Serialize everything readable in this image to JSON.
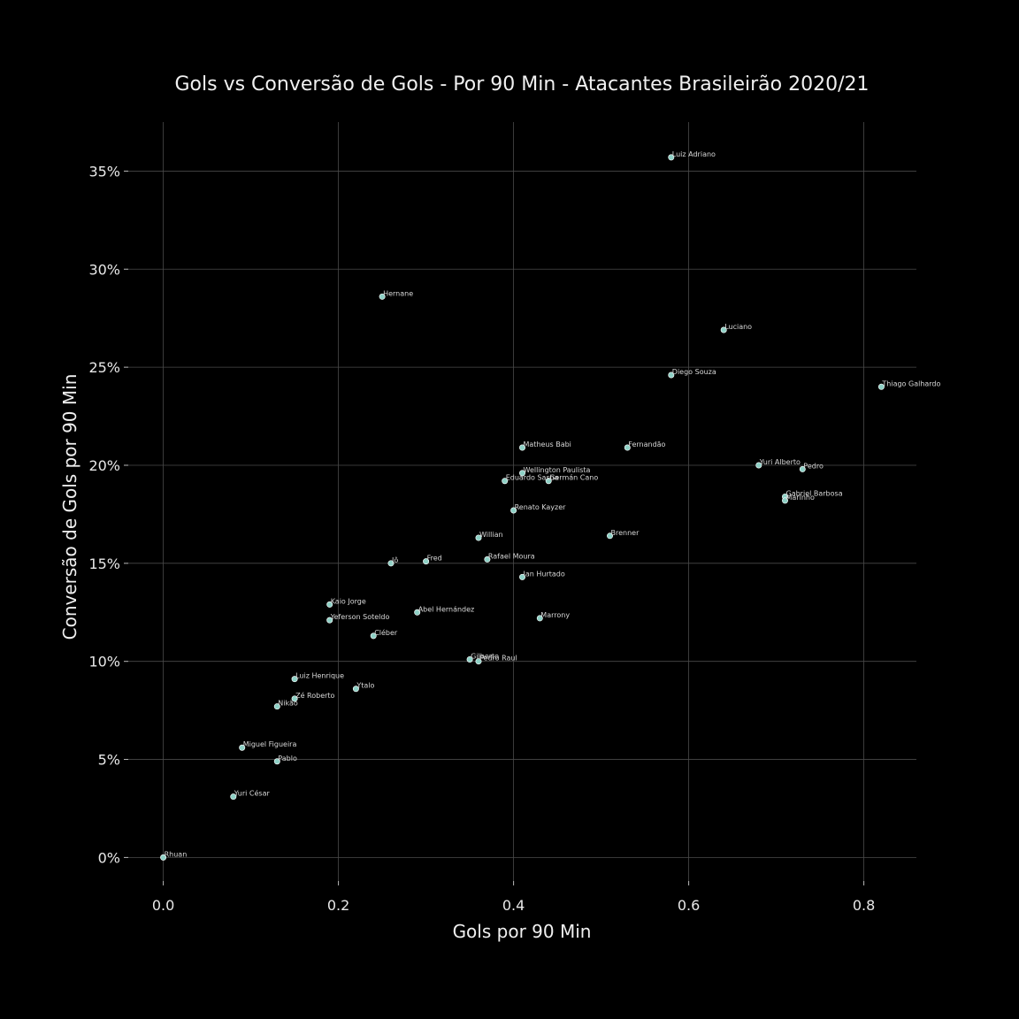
{
  "chart_data": {
    "type": "scatter",
    "title": "Gols vs Conversão de Gols - Por 90 Min - Atacantes Brasileirão 2020/21",
    "xlabel": "Gols por 90 Min",
    "ylabel": "Conversão de Gols por 90 Min",
    "xlim": [
      -0.04,
      0.86
    ],
    "ylim": [
      -0.012,
      0.375
    ],
    "xticks": [
      0.0,
      0.2,
      0.4,
      0.6,
      0.8
    ],
    "xtick_labels": [
      "0.0",
      "0.2",
      "0.4",
      "0.6",
      "0.8"
    ],
    "yticks": [
      0.0,
      0.05,
      0.1,
      0.15,
      0.2,
      0.25,
      0.3,
      0.35
    ],
    "ytick_labels": [
      "0%",
      "5%",
      "10%",
      "15%",
      "20%",
      "25%",
      "30%",
      "35%"
    ],
    "grid": true,
    "marker_color": "#8ed1c6",
    "background_color": "#000000",
    "points": [
      {
        "label": "Luiz Adriano",
        "x": 0.58,
        "y": 0.357
      },
      {
        "label": "Hernane",
        "x": 0.25,
        "y": 0.286
      },
      {
        "label": "Luciano",
        "x": 0.64,
        "y": 0.269
      },
      {
        "label": "Diego Souza",
        "x": 0.58,
        "y": 0.246
      },
      {
        "label": "Thiago Galhardo",
        "x": 0.82,
        "y": 0.24
      },
      {
        "label": "Matheus Babi",
        "x": 0.41,
        "y": 0.209
      },
      {
        "label": "Fernandão",
        "x": 0.53,
        "y": 0.209
      },
      {
        "label": "Yuri Alberto",
        "x": 0.68,
        "y": 0.2
      },
      {
        "label": "Pedro",
        "x": 0.73,
        "y": 0.198
      },
      {
        "label": "Wellington Paulista",
        "x": 0.41,
        "y": 0.196
      },
      {
        "label": "Eduardo Sasha",
        "x": 0.39,
        "y": 0.192
      },
      {
        "label": "Germán Cano",
        "x": 0.44,
        "y": 0.192
      },
      {
        "label": "Gabriel Barbosa",
        "x": 0.71,
        "y": 0.184
      },
      {
        "label": "Marinho",
        "x": 0.71,
        "y": 0.182
      },
      {
        "label": "Renato Kayzer",
        "x": 0.4,
        "y": 0.177
      },
      {
        "label": "Willian",
        "x": 0.36,
        "y": 0.163
      },
      {
        "label": "Brenner",
        "x": 0.51,
        "y": 0.164
      },
      {
        "label": "Jô",
        "x": 0.26,
        "y": 0.15
      },
      {
        "label": "Fred",
        "x": 0.3,
        "y": 0.151
      },
      {
        "label": "Rafael Moura",
        "x": 0.37,
        "y": 0.152
      },
      {
        "label": "Ian Hurtado",
        "x": 0.41,
        "y": 0.143
      },
      {
        "label": "Kaio Jorge",
        "x": 0.19,
        "y": 0.129
      },
      {
        "label": "Abel Hernández",
        "x": 0.29,
        "y": 0.125
      },
      {
        "label": "Marrony",
        "x": 0.43,
        "y": 0.122
      },
      {
        "label": "Yeferson Soteldo",
        "x": 0.19,
        "y": 0.121
      },
      {
        "label": "Cléber",
        "x": 0.24,
        "y": 0.113
      },
      {
        "label": "Gilberto",
        "x": 0.35,
        "y": 0.101
      },
      {
        "label": "Pedro Raul",
        "x": 0.36,
        "y": 0.1
      },
      {
        "label": "Luiz Henrique",
        "x": 0.15,
        "y": 0.091
      },
      {
        "label": "Ytalo",
        "x": 0.22,
        "y": 0.086
      },
      {
        "label": "Zé Roberto",
        "x": 0.15,
        "y": 0.081
      },
      {
        "label": "Nikão",
        "x": 0.13,
        "y": 0.077
      },
      {
        "label": "Miguel Figueira",
        "x": 0.09,
        "y": 0.056
      },
      {
        "label": "Pablo",
        "x": 0.13,
        "y": 0.049
      },
      {
        "label": "Yuri César",
        "x": 0.08,
        "y": 0.031
      },
      {
        "label": "Rhuan",
        "x": 0.0,
        "y": 0.0
      }
    ]
  }
}
